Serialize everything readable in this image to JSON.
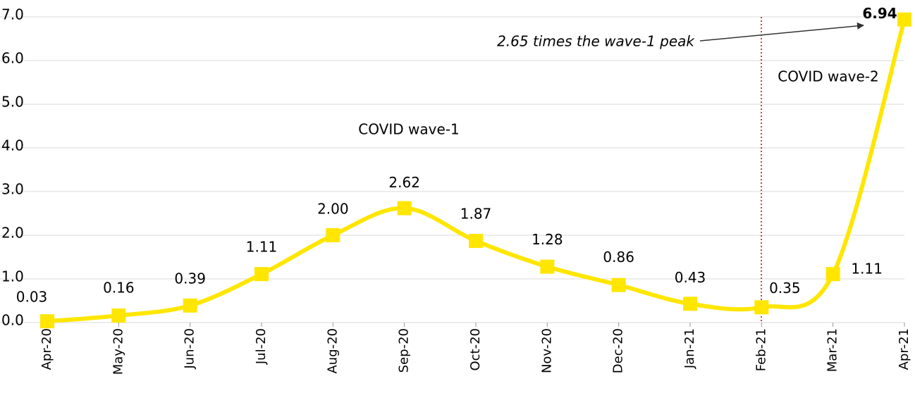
{
  "chart_data": {
    "type": "line",
    "categories": [
      "Apr-20",
      "May-20",
      "Jun-20",
      "Jul-20",
      "Aug-20",
      "Sep-20",
      "Oct-20",
      "Nov-20",
      "Dec-20",
      "Jan-21",
      "Feb-21",
      "Mar-21",
      "Apr-21"
    ],
    "values": [
      0.03,
      0.16,
      0.39,
      1.11,
      2.0,
      2.62,
      1.87,
      1.28,
      0.86,
      0.43,
      0.35,
      1.11,
      6.94
    ],
    "value_labels": [
      "0.03",
      "0.16",
      "0.39",
      "1.11",
      "2.00",
      "2.62",
      "1.87",
      "1.28",
      "0.86",
      "0.43",
      "0.35",
      "1.11",
      "6.94"
    ],
    "color": "#FFE600",
    "ylim": [
      0,
      7
    ],
    "yticks": [
      {
        "value": 0,
        "label": "0.0"
      },
      {
        "value": 1,
        "label": "1.0"
      },
      {
        "value": 2,
        "label": "2.0"
      },
      {
        "value": 3,
        "label": "3.0"
      },
      {
        "value": 4,
        "label": "4.0"
      },
      {
        "value": 5,
        "label": "5.0"
      },
      {
        "value": 6,
        "label": "6.0"
      },
      {
        "value": 7,
        "label": "7.0"
      }
    ],
    "grid": true,
    "annotations": [
      "COVID wave-1",
      "COVID wave-2",
      "2.65 times the wave-1 peak"
    ]
  }
}
